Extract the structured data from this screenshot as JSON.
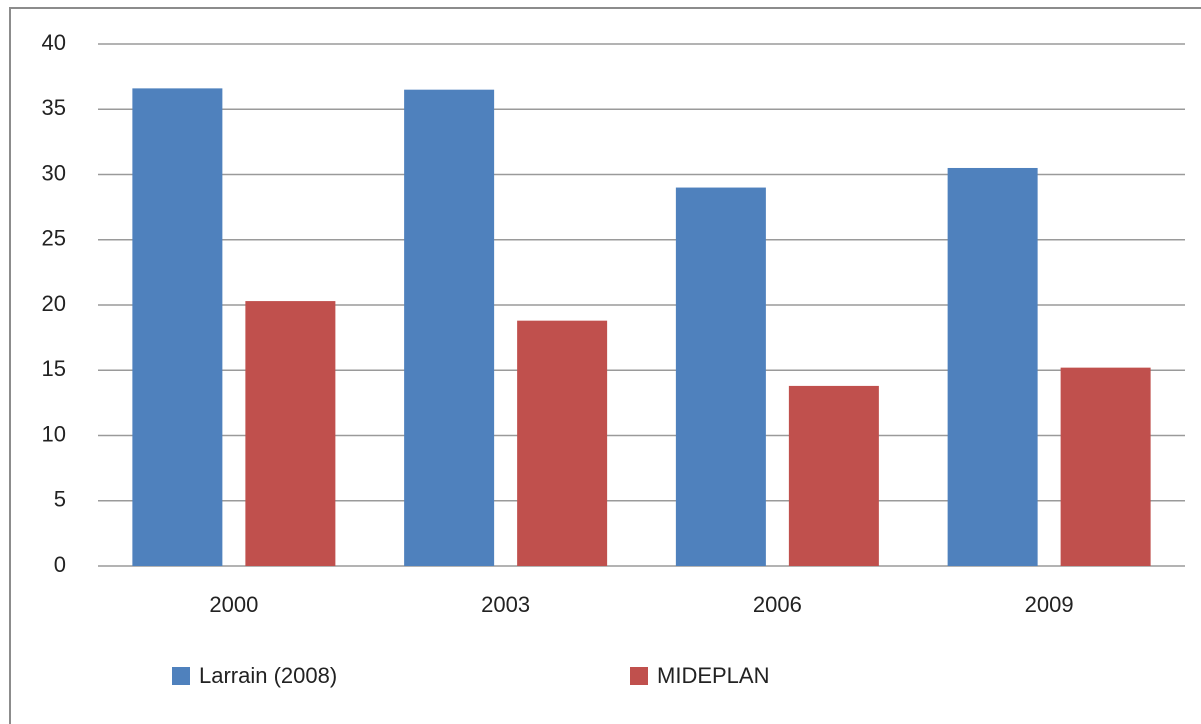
{
  "chart_data": {
    "type": "bar",
    "categories": [
      "2000",
      "2003",
      "2006",
      "2009"
    ],
    "series": [
      {
        "name": "Larrain (2008)",
        "color": "#4f81bd",
        "values": [
          36.6,
          36.5,
          29.0,
          30.5
        ]
      },
      {
        "name": "MIDEPLAN",
        "color": "#c0504d",
        "values": [
          20.3,
          18.8,
          13.8,
          15.2
        ]
      }
    ],
    "ylim": [
      0,
      40
    ],
    "yticks": [
      0,
      5,
      10,
      15,
      20,
      25,
      30,
      35,
      40
    ],
    "grid": true,
    "legend": "bottom"
  }
}
